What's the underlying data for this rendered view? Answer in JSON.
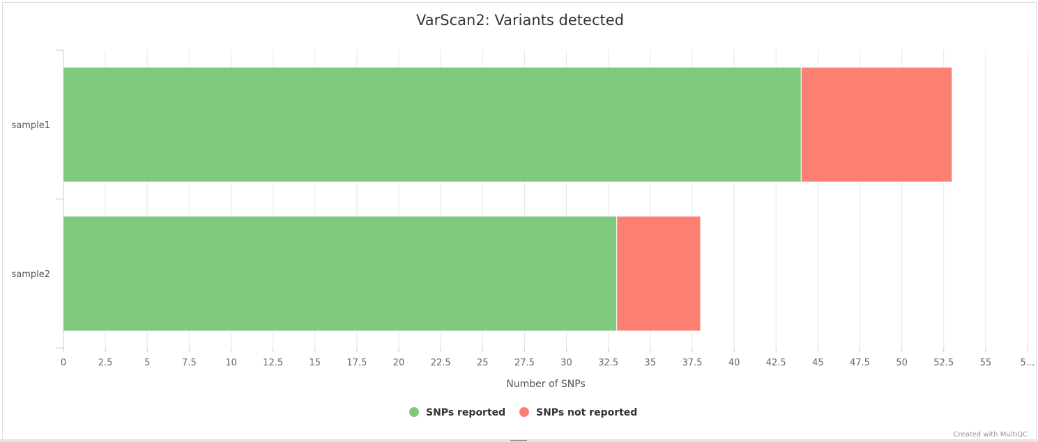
{
  "chart_data": {
    "type": "bar",
    "orientation": "horizontal",
    "stacked": true,
    "title": "VarScan2: Variants detected",
    "xlabel": "Number of SNPs",
    "ylabel": "",
    "xlim": [
      0,
      57.5
    ],
    "x_ticks": [
      "0",
      "2.5",
      "5",
      "7.5",
      "10",
      "12.5",
      "15",
      "17.5",
      "20",
      "22.5",
      "25",
      "27.5",
      "30",
      "32.5",
      "35",
      "37.5",
      "40",
      "42.5",
      "45",
      "47.5",
      "50",
      "52.5",
      "55",
      "5..."
    ],
    "categories": [
      "sample1",
      "sample2"
    ],
    "series": [
      {
        "name": "SNPs reported",
        "values": [
          44,
          33
        ],
        "color": "#7fc97f"
      },
      {
        "name": "SNPs not reported",
        "values": [
          9,
          5
        ],
        "color": "#fb8072"
      }
    ],
    "grid": true,
    "legend": "bottom-center"
  },
  "credit": "Created with MultiQC"
}
